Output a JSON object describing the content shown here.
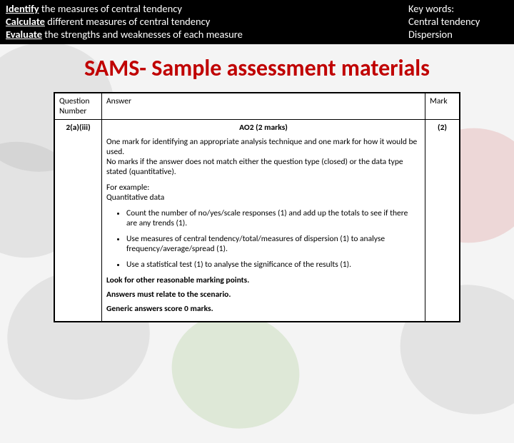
{
  "header": {
    "objectives": [
      {
        "verb": "Identify",
        "rest": " the measures of central tendency"
      },
      {
        "verb": "Calculate",
        "rest": " different measures of central tendency"
      },
      {
        "verb": "Evaluate",
        "rest": "  the strengths and weaknesses of each measure"
      }
    ],
    "keywords_label": "Key words:",
    "keywords": [
      "Central tendency",
      "Dispersion"
    ]
  },
  "title": "SAMS- Sample assessment materials",
  "table": {
    "headers": {
      "qn": "Question Number",
      "answer": "Answer",
      "mark": "Mark"
    },
    "qn": "2(a)(iii)",
    "mark": "(2)",
    "ao_line": "AO2 (2 marks)",
    "para1": "One mark for identifying an appropriate analysis technique and one mark for how it would be used.",
    "para2": "No marks if the answer does not match either the question type (closed) or the data type stated (quantitative).",
    "example_label": "For example:",
    "example_type": "Quantitative data",
    "bullets": [
      "Count the number of no/yes/scale responses (1) and add up the totals to see if there are any trends (1).",
      "Use measures of central tendency/total/measures of dispersion (1) to analyse frequency/average/spread (1).",
      "Use a statistical test (1) to analyse the significance of the results (1)."
    ],
    "note1": "Look for other reasonable marking points.",
    "note2": "Answers must relate to the scenario.",
    "note3": "Generic answers score 0 marks."
  }
}
